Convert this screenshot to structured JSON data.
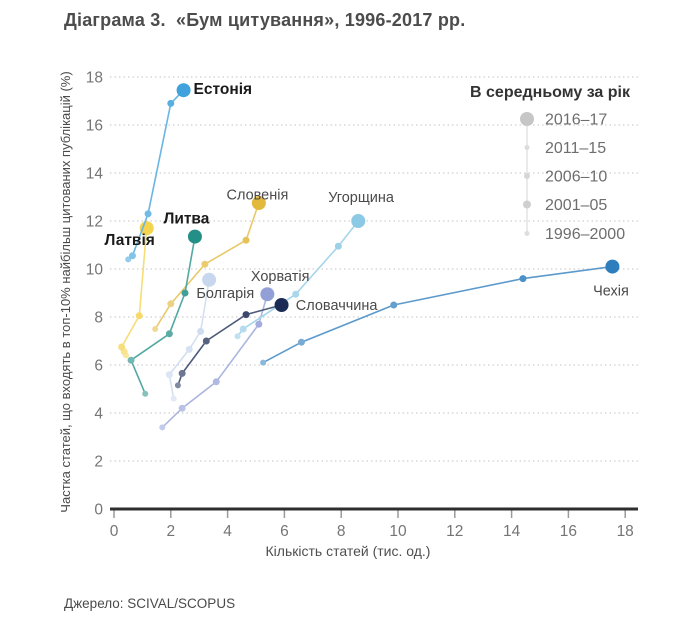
{
  "page": {
    "title": "Діаграма 3.  «Бум цитування», 1996-2017 рр.",
    "source": "Джерело: SCIVAL/SCOPUS"
  },
  "chart_data": {
    "type": "scatter",
    "subtype": "connected-scatter-trajectories",
    "title": "Діаграма 3.  «Бум цитування», 1996-2017 рр.",
    "xlabel": "Кількість статей (тис. од.)",
    "ylabel": "Частка статей, що входять в топ-10% найбільш цитованих публікацій (%)",
    "xlim": [
      0,
      18
    ],
    "ylim": [
      0,
      18
    ],
    "xticks": [
      0,
      2,
      4,
      6,
      8,
      10,
      12,
      14,
      16,
      18
    ],
    "yticks": [
      0,
      2,
      4,
      6,
      8,
      10,
      12,
      14,
      16,
      18
    ],
    "grid": "horizontal-dotted",
    "legend": {
      "title": "В середньому за рік",
      "position": "top-right",
      "entries": [
        "2016–17",
        "2011–15",
        "2006–10",
        "2001–05",
        "1996–2000"
      ]
    },
    "periods": [
      "1996–2000",
      "2001–05",
      "2006–10",
      "2011–15",
      "2016–17"
    ],
    "series": [
      {
        "id": "bulgaria",
        "name": "Болгарія",
        "color": "#c8d7ee",
        "bold": false,
        "label_at": {
          "x": 2.9,
          "y": 9.0,
          "anchor": "start"
        },
        "points": [
          [
            2.1,
            4.6
          ],
          [
            1.95,
            5.6
          ],
          [
            2.65,
            6.65
          ],
          [
            3.05,
            7.4
          ],
          [
            3.35,
            9.55
          ]
        ]
      },
      {
        "id": "croatia",
        "name": "Хорватія",
        "color": "#93a0d8",
        "bold": false,
        "label_at": {
          "x": 5.85,
          "y": 9.7,
          "anchor": "middle"
        },
        "points": [
          [
            1.7,
            3.4
          ],
          [
            2.4,
            4.2
          ],
          [
            3.6,
            5.3
          ],
          [
            5.1,
            7.7
          ],
          [
            5.4,
            8.95
          ]
        ]
      },
      {
        "id": "hungary",
        "name": "Угорщина",
        "color": "#8cc9e4",
        "bold": false,
        "label_at": {
          "x": 8.7,
          "y": 13.0,
          "anchor": "middle"
        },
        "points": [
          [
            4.35,
            7.2
          ],
          [
            4.55,
            7.5
          ],
          [
            6.4,
            8.95
          ],
          [
            7.9,
            10.95
          ],
          [
            8.6,
            12.0
          ]
        ]
      },
      {
        "id": "latvia",
        "name": "Латвія",
        "color": "#f4d34f",
        "bold": true,
        "label_at": {
          "x": 0.55,
          "y": 11.2,
          "anchor": "middle"
        },
        "points": [
          [
            0.42,
            6.4
          ],
          [
            0.36,
            6.55
          ],
          [
            0.27,
            6.75
          ],
          [
            0.89,
            8.05
          ],
          [
            1.15,
            11.7
          ]
        ]
      },
      {
        "id": "slovenia",
        "name": "Словенія",
        "color": "#e2b93d",
        "bold": false,
        "label_at": {
          "x": 5.05,
          "y": 13.1,
          "anchor": "middle"
        },
        "points": [
          [
            1.45,
            7.5
          ],
          [
            2.0,
            8.55
          ],
          [
            3.2,
            10.2
          ],
          [
            4.65,
            11.2
          ],
          [
            5.1,
            12.75
          ]
        ]
      },
      {
        "id": "lithuania",
        "name": "Литва",
        "color": "#238f86",
        "bold": true,
        "label_at": {
          "x": 2.55,
          "y": 12.1,
          "anchor": "middle"
        },
        "points": [
          [
            1.1,
            4.8
          ],
          [
            0.6,
            6.2
          ],
          [
            1.95,
            7.3
          ],
          [
            2.5,
            9.0
          ],
          [
            2.85,
            11.35
          ]
        ]
      },
      {
        "id": "estonia",
        "name": "Естонія",
        "color": "#3fa2dc",
        "bold": true,
        "label_at": {
          "x": 2.8,
          "y": 17.5,
          "anchor": "start"
        },
        "points": [
          [
            0.5,
            10.4
          ],
          [
            0.65,
            10.55
          ],
          [
            1.2,
            12.3
          ],
          [
            2.0,
            16.9
          ],
          [
            2.45,
            17.45
          ]
        ]
      },
      {
        "id": "czechia",
        "name": "Чехія",
        "color": "#2e7ebd",
        "bold": false,
        "label_at": {
          "x": 17.5,
          "y": 9.1,
          "anchor": "middle"
        },
        "points": [
          [
            5.25,
            6.1
          ],
          [
            6.6,
            6.95
          ],
          [
            9.85,
            8.5
          ],
          [
            14.4,
            9.6
          ],
          [
            17.55,
            10.1
          ]
        ]
      },
      {
        "id": "slovakia",
        "name": "Словаччина",
        "color": "#1c2b55",
        "bold": false,
        "label_at": {
          "x": 6.4,
          "y": 8.5,
          "anchor": "start"
        },
        "points": [
          [
            2.25,
            5.15
          ],
          [
            2.4,
            5.65
          ],
          [
            3.25,
            7.0
          ],
          [
            4.65,
            8.1
          ],
          [
            5.9,
            8.5
          ]
        ]
      }
    ]
  }
}
